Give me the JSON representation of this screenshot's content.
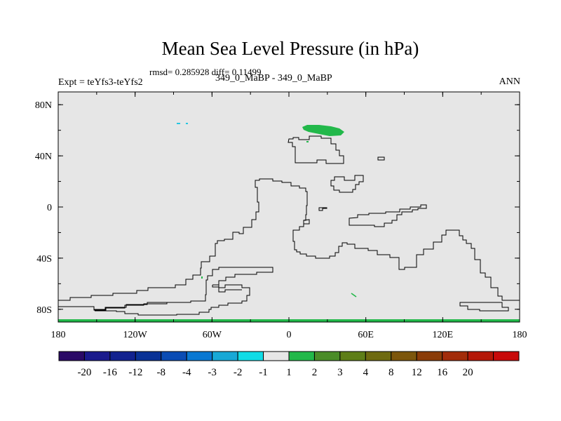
{
  "title": "Mean Sea Level Pressure (in hPa)",
  "stats": "rmsd= 0.285928 diff= 0.11499",
  "experiment": "Expt = teYfs3-teYfs2",
  "cases": "349_0_MaBP - 349_0_MaBP",
  "season": "ANN",
  "axes": {
    "x_ticks": [
      {
        "value": -180,
        "label": "180"
      },
      {
        "value": -120,
        "label": "120W"
      },
      {
        "value": -60,
        "label": "60W"
      },
      {
        "value": 0,
        "label": "0"
      },
      {
        "value": 60,
        "label": "60E"
      },
      {
        "value": 120,
        "label": "120E"
      },
      {
        "value": 180,
        "label": "180"
      }
    ],
    "y_ticks": [
      {
        "value": 80,
        "label": "80N"
      },
      {
        "value": 40,
        "label": "40N"
      },
      {
        "value": 0,
        "label": "0"
      },
      {
        "value": -40,
        "label": "40S"
      },
      {
        "value": -80,
        "label": "80S"
      }
    ],
    "x_range": [
      -180,
      180
    ],
    "y_range": [
      -90,
      90
    ]
  },
  "colors": {
    "background_field": "#e6e6e6",
    "coastline": "#000000",
    "positive_anomaly": "#22b84a",
    "negative_anomaly": "#27c6e0"
  },
  "colorbar": {
    "colors": [
      "#2a0a66",
      "#1a1a8c",
      "#12228f",
      "#0a3296",
      "#0a4cb4",
      "#0a78d2",
      "#18a8d6",
      "#10dce6",
      "#e6e6e6",
      "#22b84a",
      "#4a8c28",
      "#5e7e18",
      "#6e6a10",
      "#7c560c",
      "#8a3c08",
      "#a22c0a",
      "#b41808",
      "#c80a0a"
    ],
    "labels": [
      "-20",
      "-16",
      "-12",
      "-8",
      "-4",
      "-3",
      "-2",
      "-1",
      "1",
      "2",
      "3",
      "4",
      "8",
      "12",
      "16",
      "20"
    ]
  }
}
